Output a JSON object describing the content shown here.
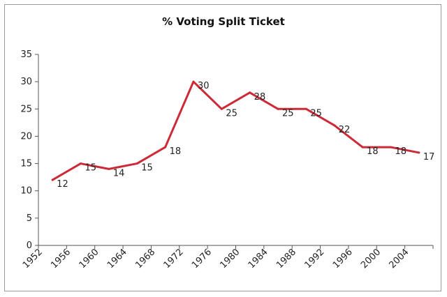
{
  "chart_data": {
    "type": "line",
    "title": "% Voting Split Ticket",
    "xlabel": "",
    "ylabel": "",
    "x_tick_labels": [
      "1952",
      "1956",
      "1960",
      "1964",
      "1968",
      "1972",
      "1976",
      "1980",
      "1984",
      "1988",
      "1992",
      "1996",
      "2000",
      "2004"
    ],
    "ylim": [
      0,
      35
    ],
    "y_ticks": [
      "0",
      "5",
      "10",
      "15",
      "20",
      "25",
      "30",
      "35"
    ],
    "grid": false,
    "legend": "none",
    "line_color": "#cc2a36",
    "series": [
      {
        "x": [
          1952,
          1956,
          1960,
          1964,
          1968,
          1972,
          1976,
          1980,
          1984,
          1988,
          1992,
          1996,
          2000,
          2004
        ],
        "values": [
          12,
          15,
          14,
          15,
          18,
          30,
          25,
          28,
          25,
          25,
          22,
          18,
          18,
          17
        ]
      }
    ]
  }
}
